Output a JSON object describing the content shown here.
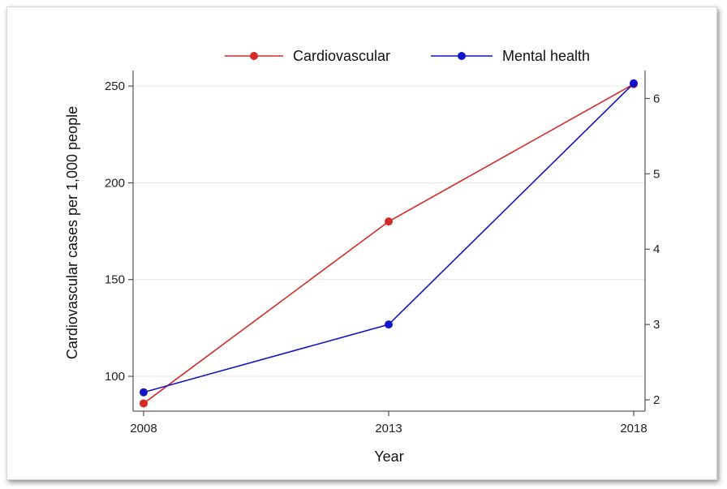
{
  "chart_data": {
    "type": "line",
    "x": [
      2008,
      2013,
      2018
    ],
    "xlabel": "Year",
    "ylabel": "Cardiovascular cases per 1,000 people",
    "ylim": [
      82,
      258
    ],
    "y2lim": [
      1.85,
      6.37
    ],
    "yticks": [
      100,
      150,
      200,
      250
    ],
    "y2ticks": [
      2,
      3,
      4,
      5,
      6
    ],
    "xticks": [
      2008,
      2013,
      2018
    ],
    "grid": true,
    "legend_position": "top",
    "series": [
      {
        "name": "Cardiovascular",
        "values": [
          86,
          180,
          251
        ],
        "axis": "left",
        "color": "#d42a2a"
      },
      {
        "name": "Mental health",
        "values": [
          2.1,
          3.0,
          6.2
        ],
        "axis": "right",
        "color": "#1414c8"
      }
    ]
  }
}
